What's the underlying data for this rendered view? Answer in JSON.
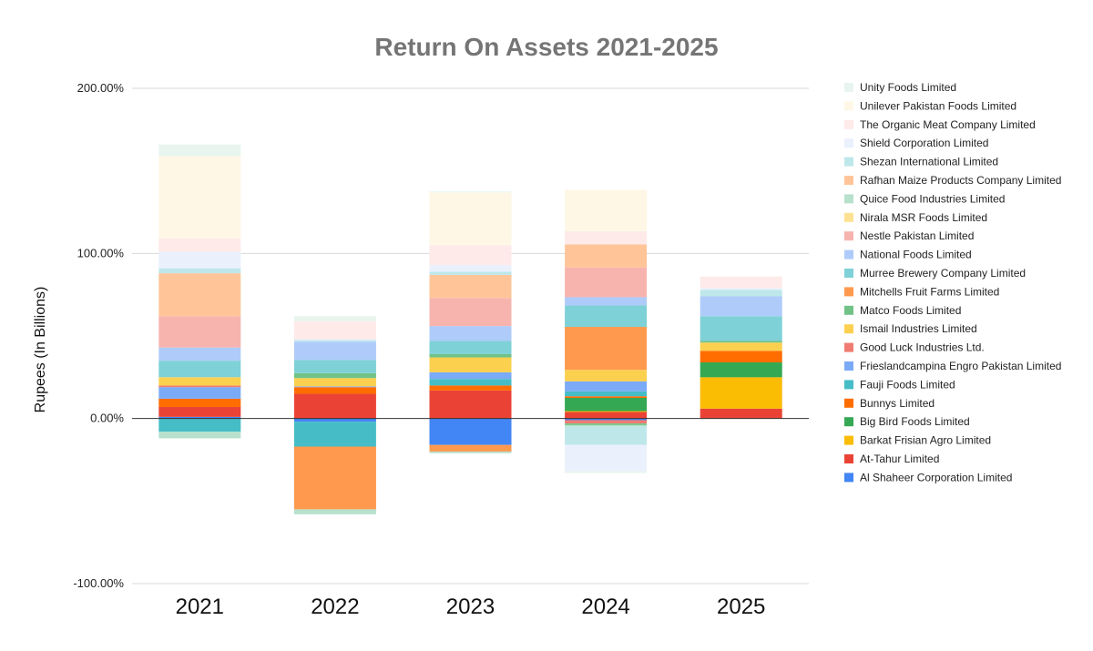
{
  "chart_data": {
    "type": "bar",
    "stacked": true,
    "title": "Return On Assets 2021-2025",
    "xlabel": "",
    "ylabel": "Rupees (In Billions)",
    "categories": [
      "2021",
      "2022",
      "2023",
      "2024",
      "2025"
    ],
    "ylim": [
      -100,
      200
    ],
    "yticks": [
      -100,
      0,
      100,
      200
    ],
    "ytick_labels": [
      "-100.00%",
      "0.00%",
      "100.00%",
      "200.00%"
    ],
    "grid": true,
    "legend_position": "right",
    "series": [
      {
        "name": "Al Shaheer Corporation Limited",
        "color": "#4285F4",
        "values": [
          1,
          -2,
          -16,
          -1,
          0
        ]
      },
      {
        "name": "At-Tahur Limited",
        "color": "#EA4335",
        "values": [
          6,
          15,
          17,
          4,
          6
        ]
      },
      {
        "name": "Barkat Frisian Agro Limited",
        "color": "#FBBC04",
        "values": [
          0,
          0,
          0,
          0.5,
          19
        ]
      },
      {
        "name": "Big Bird Foods Limited",
        "color": "#34A853",
        "values": [
          0,
          0,
          0,
          8,
          9
        ]
      },
      {
        "name": "Bunnys Limited",
        "color": "#FF6D01",
        "values": [
          5,
          4,
          3,
          1,
          7
        ]
      },
      {
        "name": "Fauji Foods Limited",
        "color": "#46BDC6",
        "values": [
          -8,
          -15,
          4,
          3,
          0
        ]
      },
      {
        "name": "Frieslandcampina Engro Pakistan Limited",
        "color": "#7BAAF7",
        "values": [
          7,
          0.5,
          4,
          6,
          0
        ]
      },
      {
        "name": "Good Luck Industries Ltd.",
        "color": "#F07B72",
        "values": [
          1,
          0,
          0,
          -2,
          0
        ]
      },
      {
        "name": "Ismail Industries Limited",
        "color": "#FCD04F",
        "values": [
          5,
          5,
          9,
          7,
          5
        ]
      },
      {
        "name": "Matco Foods Limited",
        "color": "#71C287",
        "values": [
          0,
          3,
          2,
          -1,
          1
        ]
      },
      {
        "name": "Mitchells Fruit Farms Limited",
        "color": "#FF994D",
        "values": [
          0,
          -38,
          -4,
          26,
          0
        ]
      },
      {
        "name": "Murree Brewery Company Limited",
        "color": "#7ED1D7",
        "values": [
          10,
          8,
          8,
          13,
          15
        ]
      },
      {
        "name": "National Foods Limited",
        "color": "#AECBFA",
        "values": [
          8,
          11,
          9,
          5,
          12
        ]
      },
      {
        "name": "Nestle Pakistan Limited",
        "color": "#F7B4AE",
        "values": [
          19,
          0,
          17,
          18,
          0
        ]
      },
      {
        "name": "Nirala MSR Foods Limited",
        "color": "#FDE293",
        "values": [
          0,
          0,
          0,
          0,
          0
        ]
      },
      {
        "name": "Quice Food Industries Limited",
        "color": "#B7E1CD",
        "values": [
          -4,
          -3,
          -1,
          -1,
          0
        ]
      },
      {
        "name": "Rafhan Maize Products Company Limited",
        "color": "#FFC599",
        "values": [
          26,
          0,
          14,
          14,
          0
        ]
      },
      {
        "name": "Shezan International Limited",
        "color": "#BEE7EA",
        "values": [
          3,
          1,
          2,
          -11,
          4
        ]
      },
      {
        "name": "Shield Corporation Limited",
        "color": "#EAF1FD",
        "values": [
          10,
          0.5,
          4,
          -16,
          1
        ]
      },
      {
        "name": "The Organic Meat Company Limited",
        "color": "#FDEAE9",
        "values": [
          8,
          11,
          12,
          8,
          7
        ]
      },
      {
        "name": "Unilever Pakistan Foods Limited",
        "color": "#FEF7E6",
        "values": [
          50,
          0,
          32,
          25,
          0
        ]
      },
      {
        "name": "Unity Foods Limited",
        "color": "#E8F5EE",
        "values": [
          7,
          3,
          0.5,
          -1,
          0
        ]
      }
    ]
  }
}
